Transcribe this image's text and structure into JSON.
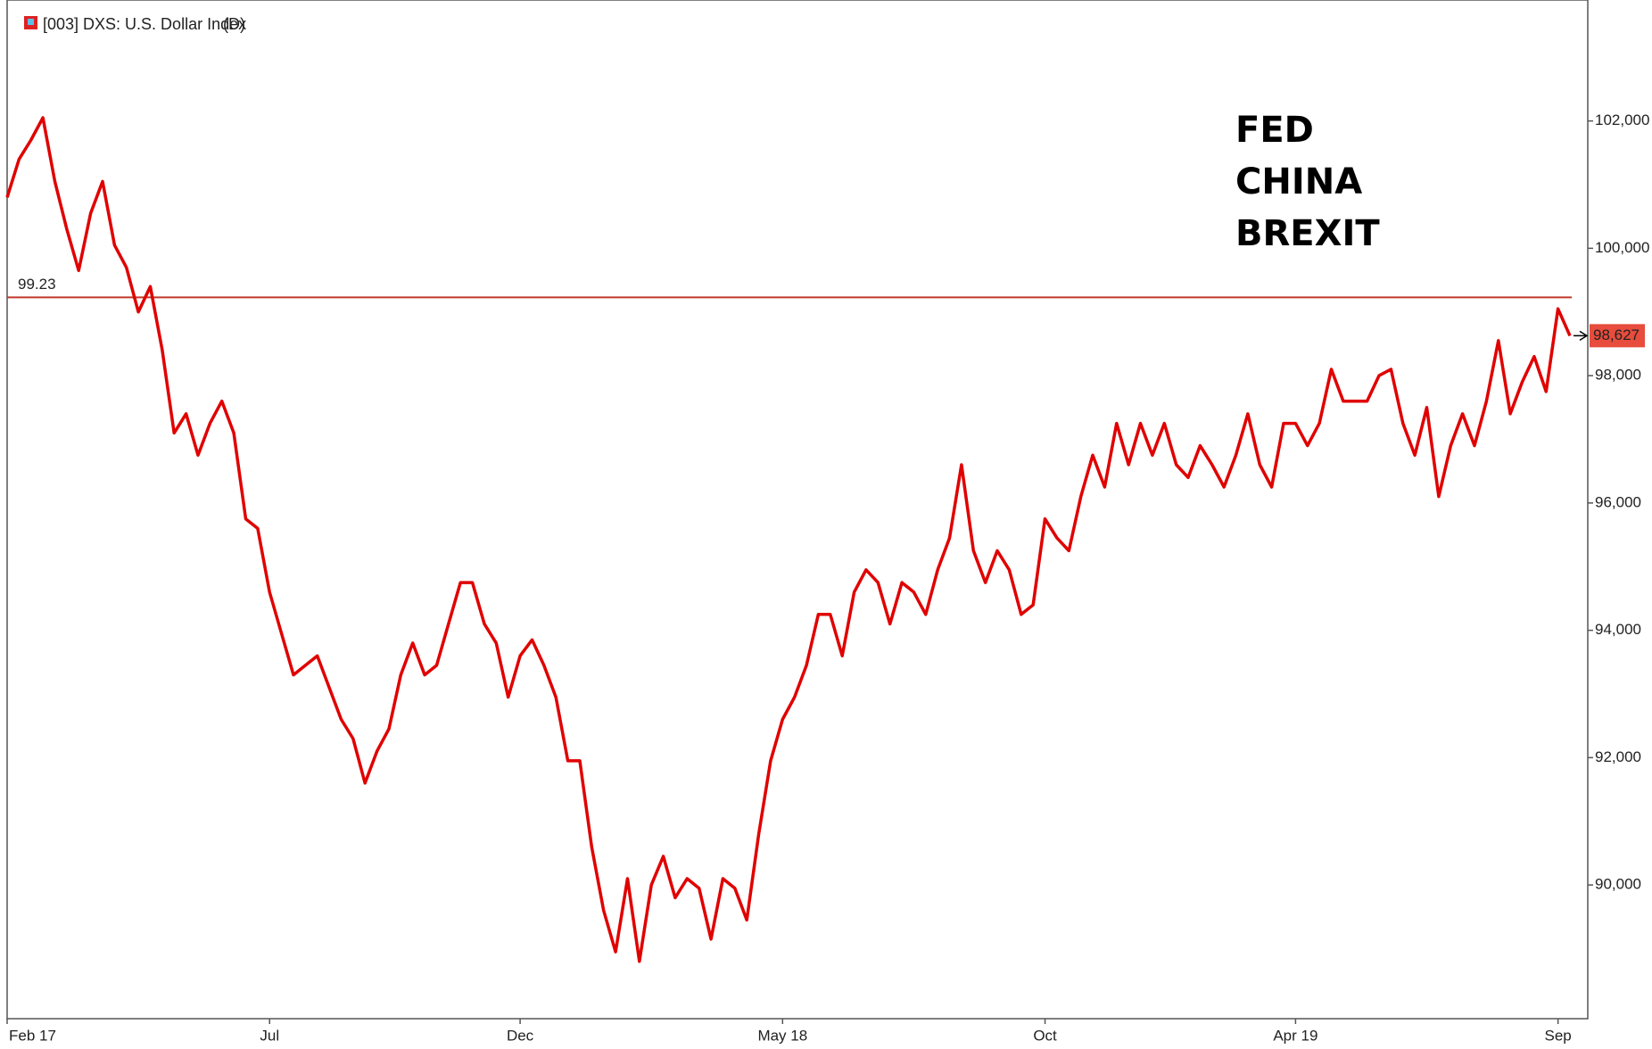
{
  "chart_data": {
    "type": "line",
    "title": "[003] DXS: U.S. Dollar Index",
    "interval": "(D)",
    "annotations": [
      "FED",
      "CHINA",
      "BREXIT"
    ],
    "reference_line": {
      "value": 99.23,
      "label": "99.23"
    },
    "categories": [
      "Feb 17",
      null,
      null,
      null,
      null,
      null,
      null,
      null,
      null,
      null,
      null,
      null,
      null,
      null,
      null,
      null,
      null,
      null,
      null,
      null,
      null,
      null,
      "Jul",
      null,
      null,
      null,
      null,
      null,
      null,
      null,
      null,
      null,
      null,
      null,
      null,
      null,
      null,
      null,
      null,
      null,
      null,
      null,
      null,
      "Dec",
      null,
      null,
      null,
      null,
      null,
      null,
      null,
      null,
      null,
      null,
      null,
      null,
      null,
      null,
      null,
      null,
      null,
      null,
      null,
      null,
      null,
      "May 18",
      null,
      null,
      null,
      null,
      null,
      null,
      null,
      null,
      null,
      null,
      null,
      null,
      null,
      null,
      null,
      null,
      null,
      null,
      null,
      null,
      null,
      "Oct",
      null,
      null,
      null,
      null,
      null,
      null,
      null,
      null,
      null,
      null,
      null,
      null,
      null,
      null,
      null,
      null,
      null,
      null,
      null,
      null,
      "Apr 19",
      null,
      null,
      null,
      null,
      null,
      null,
      null,
      null,
      null,
      null,
      null,
      null,
      null,
      null,
      null,
      null,
      null,
      null,
      null,
      null,
      null,
      "Sep",
      null
    ],
    "series": [
      {
        "color": "#e00000",
        "values": [
          100.8,
          101.4,
          101.7,
          102.05,
          101.05,
          100.3,
          99.65,
          100.55,
          101.05,
          100.05,
          99.7,
          99.0,
          99.4,
          98.4,
          97.1,
          97.4,
          96.75,
          97.25,
          97.6,
          97.1,
          95.75,
          95.6,
          94.6,
          93.95,
          93.3,
          93.45,
          93.6,
          93.1,
          92.6,
          92.3,
          91.6,
          92.1,
          92.45,
          93.3,
          93.8,
          93.3,
          93.45,
          94.1,
          94.75,
          94.75,
          94.1,
          93.8,
          92.95,
          93.6,
          93.85,
          93.45,
          92.95,
          91.95,
          91.95,
          90.6,
          89.6,
          88.95,
          90.1,
          88.8,
          90.0,
          90.45,
          89.8,
          90.1,
          89.95,
          89.15,
          90.1,
          89.95,
          89.45,
          90.8,
          91.95,
          92.6,
          92.95,
          93.45,
          94.25,
          94.25,
          93.6,
          94.6,
          94.95,
          94.75,
          94.1,
          94.75,
          94.6,
          94.25,
          94.95,
          95.45,
          96.6,
          95.25,
          94.75,
          95.25,
          94.95,
          94.25,
          94.4,
          95.75,
          95.45,
          95.25,
          96.1,
          96.75,
          96.25,
          97.25,
          96.6,
          97.25,
          96.75,
          97.25,
          96.6,
          96.4,
          96.9,
          96.6,
          96.25,
          96.75,
          97.4,
          96.6,
          96.25,
          97.25,
          97.25,
          96.9,
          97.25,
          98.1,
          97.6,
          97.6,
          97.6,
          98.0,
          98.1,
          97.25,
          96.75,
          97.5,
          96.1,
          96.9,
          97.4,
          96.9,
          97.6,
          98.55,
          97.4,
          97.9,
          98.3,
          97.75,
          99.05,
          98.627
        ],
        "value_labels": [
          null,
          null,
          null,
          null,
          null,
          null,
          null,
          null,
          null,
          null,
          null,
          null,
          null,
          null,
          null,
          null,
          null,
          null,
          null,
          null,
          null,
          null,
          null,
          null,
          null,
          null,
          null,
          null,
          null,
          null,
          null,
          null,
          null,
          null,
          null,
          null,
          null,
          null,
          null,
          null,
          null,
          null,
          null,
          null,
          null,
          null,
          null,
          null,
          null,
          null,
          null,
          null,
          null,
          null,
          null,
          null,
          null,
          null,
          null,
          null,
          null,
          null,
          null,
          null,
          null,
          null,
          null,
          null,
          null,
          null,
          null,
          null,
          null,
          null,
          null,
          null,
          null,
          null,
          null,
          null,
          null,
          null,
          null,
          null,
          null,
          null,
          null,
          null,
          null,
          null,
          null,
          null,
          null,
          null,
          null,
          null,
          null,
          null,
          null,
          null,
          null,
          null,
          null,
          null,
          null,
          null,
          null,
          null,
          null,
          null,
          null,
          null,
          null,
          null,
          null,
          null,
          null,
          null,
          null,
          null,
          null,
          null,
          null,
          null,
          null,
          null,
          null,
          null,
          null,
          null,
          null,
          "98,627"
        ]
      }
    ],
    "ylim": [
      87.9,
      103.9
    ],
    "yticks": [
      {
        "value": 90,
        "label": "90,000"
      },
      {
        "value": 92,
        "label": "92,000"
      },
      {
        "value": 94,
        "label": "94,000"
      },
      {
        "value": 96,
        "label": "96,000"
      },
      {
        "value": 98,
        "label": "98,000"
      },
      {
        "value": 100,
        "label": "100,000"
      },
      {
        "value": 102,
        "label": "102,000"
      }
    ],
    "grid": false
  }
}
